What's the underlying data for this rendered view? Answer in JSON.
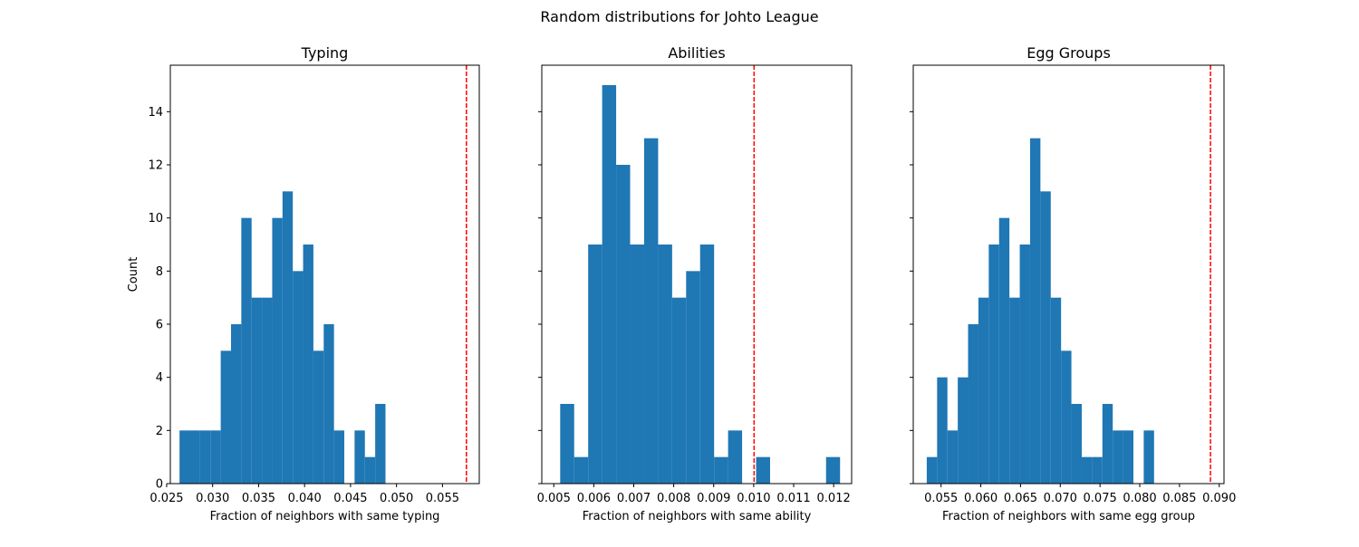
{
  "figure": {
    "title": "Random distributions for Johto League"
  },
  "colors": {
    "bar": "#1f77b4",
    "marker": "#ff0000",
    "axis": "#000000"
  },
  "chart_data": [
    {
      "type": "bar",
      "title": "Typing",
      "xlabel": "Fraction of neighbors with same typing",
      "ylabel": "Count",
      "xlim": [
        0.0254,
        0.059
      ],
      "ylim": [
        0,
        15.75
      ],
      "xticks": [
        "0.025",
        "0.030",
        "0.035",
        "0.040",
        "0.045",
        "0.050",
        "0.055"
      ],
      "yticks": [
        "0",
        "2",
        "4",
        "6",
        "8",
        "10",
        "12",
        "14"
      ],
      "bin_edges": [
        0.0264,
        0.02752,
        0.02864,
        0.02976,
        0.03088,
        0.032,
        0.03312,
        0.03424,
        0.03536,
        0.03648,
        0.0376,
        0.03872,
        0.03984,
        0.04096,
        0.04208,
        0.0432,
        0.04432,
        0.04544,
        0.04656,
        0.04768,
        0.0488,
        0.04992,
        0.05104,
        0.05216,
        0.05328,
        0.0544,
        0.05552
      ],
      "counts": [
        2,
        2,
        2,
        2,
        5,
        6,
        10,
        7,
        7,
        10,
        11,
        8,
        9,
        5,
        6,
        2,
        0,
        2,
        1,
        3,
        0,
        0,
        0,
        0,
        0,
        0
      ],
      "observed": 0.0576
    },
    {
      "type": "bar",
      "title": "Abilities",
      "xlabel": "Fraction of neighbors with same ability",
      "ylabel": "",
      "xlim": [
        0.0047,
        0.01245
      ],
      "ylim": [
        0,
        15.75
      ],
      "xticks": [
        "0.005",
        "0.006",
        "0.007",
        "0.008",
        "0.009",
        "0.010",
        "0.011",
        "0.012"
      ],
      "yticks": [
        "0",
        "2",
        "4",
        "6",
        "8",
        "10",
        "12",
        "14"
      ],
      "bin_edges": [
        0.00516,
        0.00551,
        0.00586,
        0.00621,
        0.00656,
        0.00691,
        0.00726,
        0.00761,
        0.00796,
        0.00831,
        0.00866,
        0.00901,
        0.00936,
        0.00971,
        0.01006,
        0.01041,
        0.01076,
        0.01111,
        0.01146,
        0.01181,
        0.01216
      ],
      "counts": [
        3,
        1,
        9,
        15,
        12,
        9,
        13,
        9,
        7,
        8,
        9,
        1,
        2,
        0,
        1,
        0,
        0,
        0,
        0,
        1
      ],
      "observed": 0.01001
    },
    {
      "type": "bar",
      "title": "Egg Groups",
      "xlabel": "Fraction of neighbors with same egg group",
      "ylabel": "",
      "xlim": [
        0.0515,
        0.0906
      ],
      "ylim": [
        0,
        15.75
      ],
      "xticks": [
        "0.055",
        "0.060",
        "0.065",
        "0.070",
        "0.075",
        "0.080",
        "0.085",
        "0.090"
      ],
      "yticks": [
        "0",
        "2",
        "4",
        "6",
        "8",
        "10",
        "12",
        "14"
      ],
      "bin_edges": [
        0.0532,
        0.0545,
        0.0558,
        0.0571,
        0.0584,
        0.0597,
        0.061,
        0.0623,
        0.0636,
        0.0649,
        0.0662,
        0.0675,
        0.0688,
        0.0701,
        0.0714,
        0.0727,
        0.074,
        0.0753,
        0.0766,
        0.0779,
        0.0792,
        0.0805,
        0.0818,
        0.0831,
        0.0844,
        0.0857
      ],
      "counts": [
        1,
        4,
        2,
        4,
        6,
        7,
        9,
        10,
        7,
        9,
        13,
        11,
        7,
        5,
        3,
        1,
        1,
        3,
        2,
        2,
        0,
        2,
        0,
        0,
        0
      ],
      "observed": 0.0889
    }
  ]
}
